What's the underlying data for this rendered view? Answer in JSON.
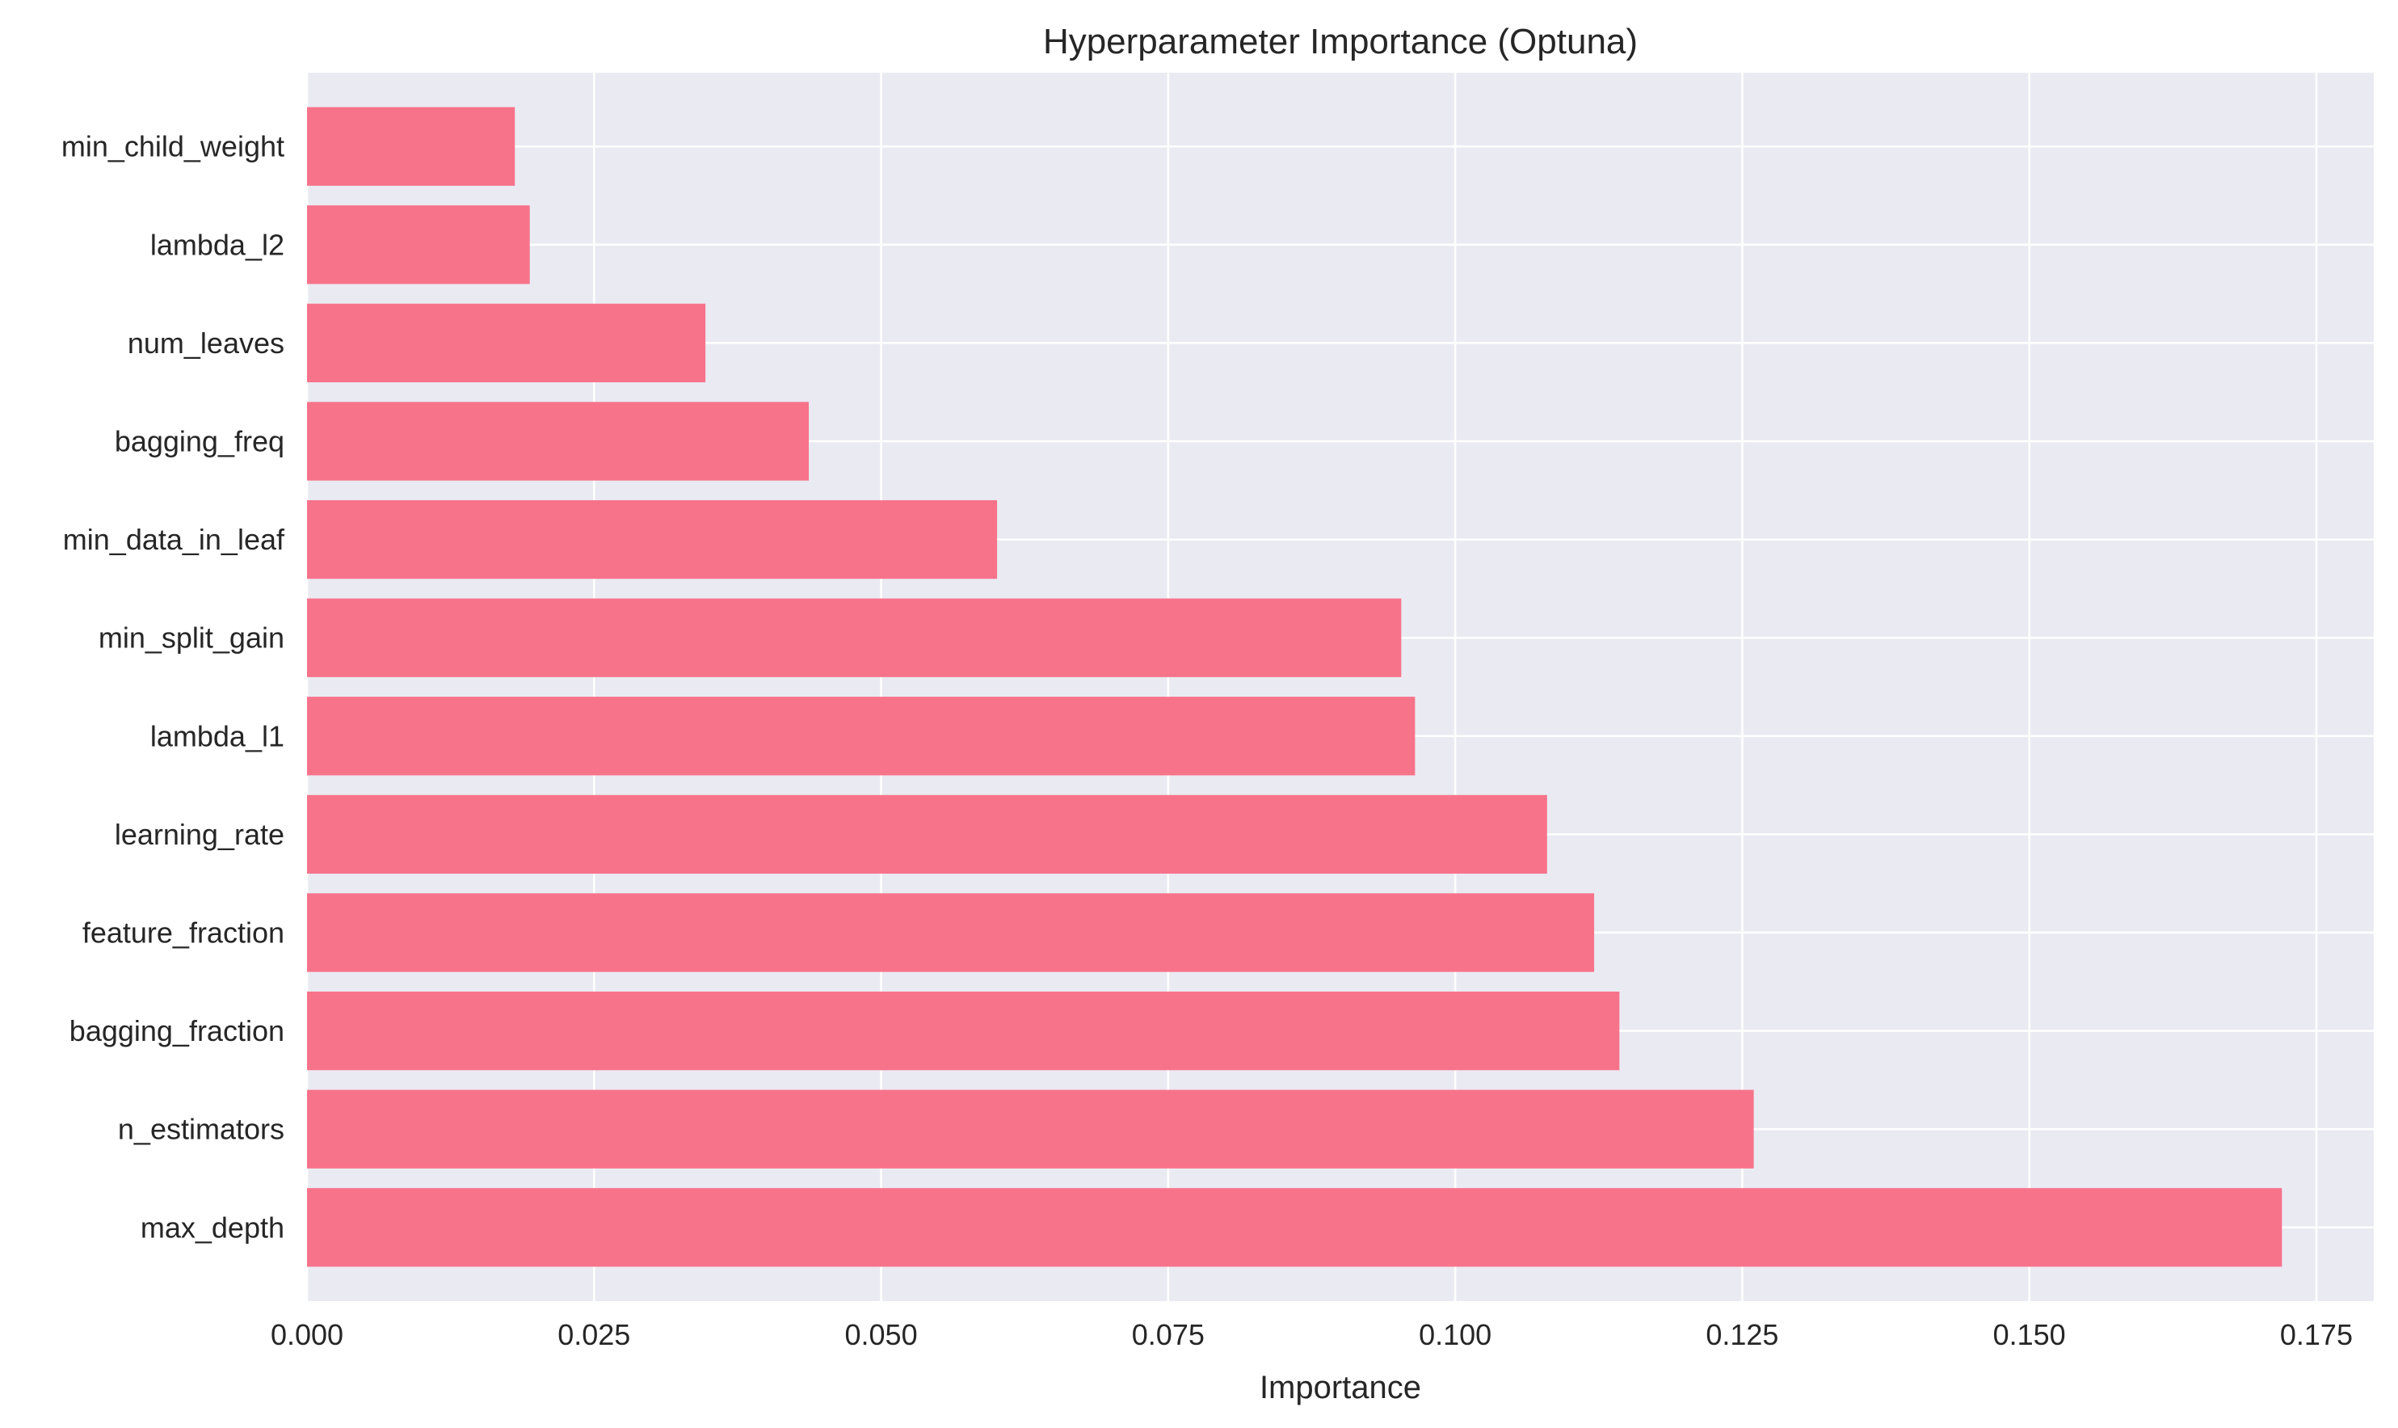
{
  "chart_data": {
    "type": "bar",
    "orientation": "horizontal",
    "title": "Hyperparameter Importance (Optuna)",
    "xlabel": "Importance",
    "ylabel": "",
    "xlim": [
      0,
      0.18
    ],
    "xticks": [
      "0.000",
      "0.025",
      "0.050",
      "0.075",
      "0.100",
      "0.125",
      "0.150",
      "0.175"
    ],
    "categories": [
      "max_depth",
      "n_estimators",
      "bagging_fraction",
      "feature_fraction",
      "learning_rate",
      "lambda_l1",
      "min_split_gain",
      "min_data_in_leaf",
      "bagging_freq",
      "num_leaves",
      "lambda_l2",
      "min_child_weight"
    ],
    "values": [
      0.172,
      0.126,
      0.1143,
      0.1121,
      0.108,
      0.0965,
      0.0953,
      0.0601,
      0.0437,
      0.0347,
      0.0194,
      0.0181
    ],
    "bar_color": "#f7738a",
    "background_color": "#eaeaf2",
    "grid": true,
    "legend": "none"
  }
}
